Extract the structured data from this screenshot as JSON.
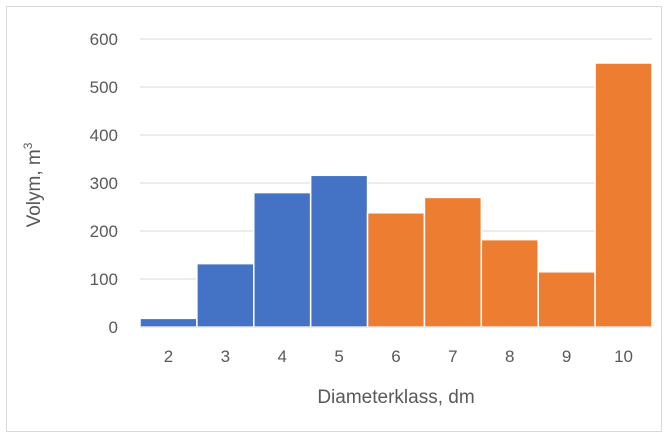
{
  "chart_data": {
    "type": "bar",
    "title": "",
    "xlabel": "Diameterklass, dm",
    "ylabel_main": "Volym, m",
    "ylabel_sup": "3",
    "categories": [
      "2",
      "3",
      "4",
      "5",
      "6",
      "7",
      "8",
      "9",
      "10"
    ],
    "values": [
      18,
      132,
      280,
      316,
      238,
      270,
      182,
      115,
      550
    ],
    "bar_colors": [
      "#4472c4",
      "#4472c4",
      "#4472c4",
      "#4472c4",
      "#ed7d31",
      "#ed7d31",
      "#ed7d31",
      "#ed7d31",
      "#ed7d31"
    ],
    "ylim": [
      0,
      600
    ],
    "yticks": [
      "0",
      "100",
      "200",
      "300",
      "400",
      "500",
      "600"
    ],
    "grid": true,
    "legend": "none"
  }
}
